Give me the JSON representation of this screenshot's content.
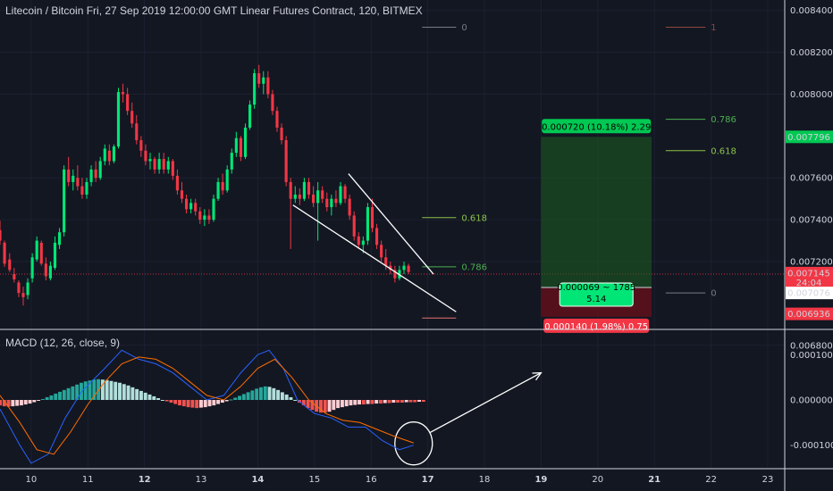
{
  "chart_data": {
    "type": "candlestick",
    "title": "Litecoin / Bitcoin Fri, 27 Sep 2019 12:00:00 GMT Linear Futures Contract, 120, BITMEX",
    "price_axis": {
      "ylim": [
        0.00688,
        0.00845
      ],
      "ticks": [
        "0.008400",
        "0.008200",
        "0.008000",
        "0.007600",
        "0.007400",
        "0.007200",
        "0.006800"
      ]
    },
    "x_axis": {
      "xlim": [
        9.45,
        23.3
      ],
      "ticks": [
        "10",
        "11",
        "12",
        "13",
        "14",
        "15",
        "16",
        "17",
        "18",
        "19",
        "20",
        "21",
        "22",
        "23"
      ],
      "bold_ticks": [
        "12",
        "14",
        "17",
        "19",
        "21"
      ]
    },
    "candles": [
      {
        "t": 9.45,
        "o": 0.00735,
        "h": 0.007395,
        "l": 0.00728,
        "c": 0.0073
      },
      {
        "t": 9.53,
        "o": 0.00729,
        "h": 0.0073,
        "l": 0.007175,
        "c": 0.00719
      },
      {
        "t": 9.62,
        "o": 0.00721,
        "h": 0.00724,
        "l": 0.00715,
        "c": 0.00716
      },
      {
        "t": 9.7,
        "o": 0.00714,
        "h": 0.00717,
        "l": 0.0071,
        "c": 0.007115
      },
      {
        "t": 9.78,
        "o": 0.0071,
        "h": 0.00711,
        "l": 0.00703,
        "c": 0.00705
      },
      {
        "t": 9.86,
        "o": 0.00705,
        "h": 0.00708,
        "l": 0.00699,
        "c": 0.00703
      },
      {
        "t": 9.94,
        "o": 0.00704,
        "h": 0.00712,
        "l": 0.00702,
        "c": 0.0071
      },
      {
        "t": 10.02,
        "o": 0.00712,
        "h": 0.00724,
        "l": 0.0071,
        "c": 0.00722
      },
      {
        "t": 10.1,
        "o": 0.00721,
        "h": 0.00732,
        "l": 0.0072,
        "c": 0.0073
      },
      {
        "t": 10.18,
        "o": 0.00729,
        "h": 0.0073,
        "l": 0.00718,
        "c": 0.00719
      },
      {
        "t": 10.26,
        "o": 0.00719,
        "h": 0.00722,
        "l": 0.00711,
        "c": 0.00713
      },
      {
        "t": 10.34,
        "o": 0.00712,
        "h": 0.0072,
        "l": 0.00711,
        "c": 0.00718
      },
      {
        "t": 10.42,
        "o": 0.00717,
        "h": 0.00732,
        "l": 0.00716,
        "c": 0.00729
      },
      {
        "t": 10.5,
        "o": 0.00728,
        "h": 0.00736,
        "l": 0.00726,
        "c": 0.00734
      },
      {
        "t": 10.58,
        "o": 0.00734,
        "h": 0.00766,
        "l": 0.00732,
        "c": 0.00764
      },
      {
        "t": 10.66,
        "o": 0.00764,
        "h": 0.0077,
        "l": 0.00756,
        "c": 0.00758
      },
      {
        "t": 10.74,
        "o": 0.00758,
        "h": 0.00764,
        "l": 0.00754,
        "c": 0.00761
      },
      {
        "t": 10.82,
        "o": 0.0076,
        "h": 0.00766,
        "l": 0.00754,
        "c": 0.00756
      },
      {
        "t": 10.9,
        "o": 0.00756,
        "h": 0.0076,
        "l": 0.0075,
        "c": 0.00752
      },
      {
        "t": 10.98,
        "o": 0.00752,
        "h": 0.0076,
        "l": 0.0075,
        "c": 0.00758
      },
      {
        "t": 11.06,
        "o": 0.00758,
        "h": 0.00766,
        "l": 0.00756,
        "c": 0.00764
      },
      {
        "t": 11.14,
        "o": 0.00764,
        "h": 0.00768,
        "l": 0.00758,
        "c": 0.0076
      },
      {
        "t": 11.22,
        "o": 0.0076,
        "h": 0.0077,
        "l": 0.00759,
        "c": 0.00768
      },
      {
        "t": 11.3,
        "o": 0.00768,
        "h": 0.00776,
        "l": 0.00766,
        "c": 0.00774
      },
      {
        "t": 11.38,
        "o": 0.00773,
        "h": 0.00776,
        "l": 0.00766,
        "c": 0.00768
      },
      {
        "t": 11.46,
        "o": 0.00768,
        "h": 0.00776,
        "l": 0.00767,
        "c": 0.00775
      },
      {
        "t": 11.54,
        "o": 0.00775,
        "h": 0.00803,
        "l": 0.00774,
        "c": 0.00801
      },
      {
        "t": 11.62,
        "o": 0.00801,
        "h": 0.00805,
        "l": 0.00796,
        "c": 0.008
      },
      {
        "t": 11.7,
        "o": 0.008,
        "h": 0.00803,
        "l": 0.0079,
        "c": 0.00792
      },
      {
        "t": 11.78,
        "o": 0.00792,
        "h": 0.00796,
        "l": 0.00784,
        "c": 0.00786
      },
      {
        "t": 11.86,
        "o": 0.00786,
        "h": 0.0079,
        "l": 0.00776,
        "c": 0.00778
      },
      {
        "t": 11.94,
        "o": 0.00778,
        "h": 0.0078,
        "l": 0.0077,
        "c": 0.00773
      },
      {
        "t": 12.02,
        "o": 0.00773,
        "h": 0.00776,
        "l": 0.00766,
        "c": 0.00768
      },
      {
        "t": 12.1,
        "o": 0.00768,
        "h": 0.00772,
        "l": 0.00764,
        "c": 0.00769
      },
      {
        "t": 12.18,
        "o": 0.00769,
        "h": 0.0077,
        "l": 0.00762,
        "c": 0.00764
      },
      {
        "t": 12.26,
        "o": 0.00764,
        "h": 0.00772,
        "l": 0.00762,
        "c": 0.00769
      },
      {
        "t": 12.34,
        "o": 0.00769,
        "h": 0.00772,
        "l": 0.00762,
        "c": 0.00764
      },
      {
        "t": 12.42,
        "o": 0.00764,
        "h": 0.0077,
        "l": 0.00762,
        "c": 0.00768
      },
      {
        "t": 12.5,
        "o": 0.00768,
        "h": 0.00769,
        "l": 0.00759,
        "c": 0.00761
      },
      {
        "t": 12.58,
        "o": 0.00761,
        "h": 0.00764,
        "l": 0.00752,
        "c": 0.00754
      },
      {
        "t": 12.66,
        "o": 0.00754,
        "h": 0.00758,
        "l": 0.00748,
        "c": 0.0075
      },
      {
        "t": 12.74,
        "o": 0.0075,
        "h": 0.00752,
        "l": 0.00743,
        "c": 0.00745
      },
      {
        "t": 12.82,
        "o": 0.00745,
        "h": 0.0075,
        "l": 0.00743,
        "c": 0.00748
      },
      {
        "t": 12.9,
        "o": 0.00748,
        "h": 0.0075,
        "l": 0.00742,
        "c": 0.00744
      },
      {
        "t": 12.98,
        "o": 0.00744,
        "h": 0.00746,
        "l": 0.00738,
        "c": 0.0074
      },
      {
        "t": 13.06,
        "o": 0.0074,
        "h": 0.00745,
        "l": 0.00737,
        "c": 0.00742
      },
      {
        "t": 13.14,
        "o": 0.00742,
        "h": 0.00745,
        "l": 0.00738,
        "c": 0.0074
      },
      {
        "t": 13.22,
        "o": 0.0074,
        "h": 0.00752,
        "l": 0.00739,
        "c": 0.0075
      },
      {
        "t": 13.3,
        "o": 0.0075,
        "h": 0.0076,
        "l": 0.00749,
        "c": 0.00758
      },
      {
        "t": 13.38,
        "o": 0.00758,
        "h": 0.00762,
        "l": 0.00752,
        "c": 0.00754
      },
      {
        "t": 13.46,
        "o": 0.00754,
        "h": 0.00766,
        "l": 0.00753,
        "c": 0.00764
      },
      {
        "t": 13.54,
        "o": 0.00764,
        "h": 0.00774,
        "l": 0.00762,
        "c": 0.00772
      },
      {
        "t": 13.62,
        "o": 0.00772,
        "h": 0.00782,
        "l": 0.0077,
        "c": 0.00779
      },
      {
        "t": 13.7,
        "o": 0.00779,
        "h": 0.0078,
        "l": 0.00768,
        "c": 0.0077
      },
      {
        "t": 13.78,
        "o": 0.0077,
        "h": 0.00786,
        "l": 0.00769,
        "c": 0.00784
      },
      {
        "t": 13.86,
        "o": 0.00784,
        "h": 0.00797,
        "l": 0.00783,
        "c": 0.00795
      },
      {
        "t": 13.94,
        "o": 0.00795,
        "h": 0.00812,
        "l": 0.00793,
        "c": 0.0081
      },
      {
        "t": 14.02,
        "o": 0.0081,
        "h": 0.00814,
        "l": 0.00803,
        "c": 0.00805
      },
      {
        "t": 14.1,
        "o": 0.00805,
        "h": 0.00811,
        "l": 0.008,
        "c": 0.00808
      },
      {
        "t": 14.18,
        "o": 0.00808,
        "h": 0.00811,
        "l": 0.00798,
        "c": 0.008
      },
      {
        "t": 14.26,
        "o": 0.008,
        "h": 0.00802,
        "l": 0.0079,
        "c": 0.00792
      },
      {
        "t": 14.34,
        "o": 0.00792,
        "h": 0.00794,
        "l": 0.00782,
        "c": 0.00784
      },
      {
        "t": 14.42,
        "o": 0.00784,
        "h": 0.00786,
        "l": 0.00776,
        "c": 0.00778
      },
      {
        "t": 14.5,
        "o": 0.00778,
        "h": 0.0078,
        "l": 0.00756,
        "c": 0.00758
      },
      {
        "t": 14.58,
        "o": 0.00758,
        "h": 0.0076,
        "l": 0.00726,
        "c": 0.0075
      },
      {
        "t": 14.66,
        "o": 0.0075,
        "h": 0.00756,
        "l": 0.00748,
        "c": 0.00752
      },
      {
        "t": 14.74,
        "o": 0.00752,
        "h": 0.00755,
        "l": 0.00747,
        "c": 0.0075
      },
      {
        "t": 14.82,
        "o": 0.0075,
        "h": 0.0076,
        "l": 0.00749,
        "c": 0.00758
      },
      {
        "t": 14.9,
        "o": 0.00758,
        "h": 0.0076,
        "l": 0.0075,
        "c": 0.00752
      },
      {
        "t": 14.98,
        "o": 0.00752,
        "h": 0.00756,
        "l": 0.00746,
        "c": 0.00748
      },
      {
        "t": 15.06,
        "o": 0.00748,
        "h": 0.00758,
        "l": 0.0073,
        "c": 0.00754
      },
      {
        "t": 15.14,
        "o": 0.00754,
        "h": 0.00756,
        "l": 0.00748,
        "c": 0.0075
      },
      {
        "t": 15.22,
        "o": 0.0075,
        "h": 0.00753,
        "l": 0.00744,
        "c": 0.00746
      },
      {
        "t": 15.3,
        "o": 0.00746,
        "h": 0.00752,
        "l": 0.00742,
        "c": 0.0075
      },
      {
        "t": 15.38,
        "o": 0.0075,
        "h": 0.00754,
        "l": 0.00746,
        "c": 0.00748
      },
      {
        "t": 15.46,
        "o": 0.00748,
        "h": 0.00758,
        "l": 0.00747,
        "c": 0.00756
      },
      {
        "t": 15.54,
        "o": 0.00756,
        "h": 0.00757,
        "l": 0.00748,
        "c": 0.0075
      },
      {
        "t": 15.62,
        "o": 0.0075,
        "h": 0.00752,
        "l": 0.0074,
        "c": 0.00742
      },
      {
        "t": 15.7,
        "o": 0.00742,
        "h": 0.00744,
        "l": 0.0073,
        "c": 0.00732
      },
      {
        "t": 15.78,
        "o": 0.00732,
        "h": 0.00734,
        "l": 0.00726,
        "c": 0.00728
      },
      {
        "t": 15.86,
        "o": 0.00728,
        "h": 0.00732,
        "l": 0.00724,
        "c": 0.0073
      },
      {
        "t": 15.94,
        "o": 0.0073,
        "h": 0.00748,
        "l": 0.00728,
        "c": 0.00746
      },
      {
        "t": 16.02,
        "o": 0.00746,
        "h": 0.0075,
        "l": 0.00734,
        "c": 0.00736
      },
      {
        "t": 16.1,
        "o": 0.00736,
        "h": 0.00738,
        "l": 0.00726,
        "c": 0.00728
      },
      {
        "t": 16.18,
        "o": 0.00728,
        "h": 0.0073,
        "l": 0.0072,
        "c": 0.00722
      },
      {
        "t": 16.26,
        "o": 0.00722,
        "h": 0.00726,
        "l": 0.00716,
        "c": 0.00718
      },
      {
        "t": 16.34,
        "o": 0.00718,
        "h": 0.0072,
        "l": 0.00714,
        "c": 0.00716
      },
      {
        "t": 16.42,
        "o": 0.00716,
        "h": 0.00718,
        "l": 0.0071,
        "c": 0.00712
      },
      {
        "t": 16.5,
        "o": 0.00712,
        "h": 0.00718,
        "l": 0.00711,
        "c": 0.00716
      },
      {
        "t": 16.58,
        "o": 0.00716,
        "h": 0.0072,
        "l": 0.00714,
        "c": 0.00718
      },
      {
        "t": 16.66,
        "o": 0.00718,
        "h": 0.00719,
        "l": 0.00714,
        "c": 0.00715
      }
    ],
    "price_line": 0.00714,
    "wedge": [
      {
        "from": [
          14.62,
          0.00747
        ],
        "to": [
          17.5,
          0.00696
        ]
      },
      {
        "from": [
          15.6,
          0.00762
        ],
        "to": [
          17.1,
          0.00714
        ]
      }
    ],
    "fib_left": {
      "x": [
        16.9,
        17.5
      ],
      "levels": [
        {
          "label": "0",
          "price": 0.00832,
          "color": "#787b86"
        },
        {
          "label": "0.618",
          "price": 0.00741,
          "color": "#8bc34a"
        },
        {
          "label": "0.786",
          "price": 0.007175,
          "color": "#4caf50"
        },
        {
          "label": "",
          "price": 0.00693,
          "color": "#e57373"
        }
      ]
    },
    "fib_right": {
      "x": [
        21.2,
        21.9
      ],
      "levels": [
        {
          "label": "1",
          "price": 0.00832,
          "color": "#8d4a3c"
        },
        {
          "label": "0.786",
          "price": 0.00788,
          "color": "#4caf50"
        },
        {
          "label": "0.618",
          "price": 0.00773,
          "color": "#8bc34a"
        },
        {
          "label": "0",
          "price": 0.00705,
          "color": "#787b86"
        }
      ]
    },
    "position": {
      "x": [
        19.0,
        20.95
      ],
      "entry": 0.007076,
      "target": 0.007796,
      "stop": 0.006936,
      "target_label": "0.000720 (10.18%) 2.29",
      "entry_label_1": "0.000069 ~ 1785",
      "entry_label_2": "5.14",
      "stop_label": "0.000140 (1.98%) 0.75"
    },
    "axis_badges": [
      {
        "text": "0.007796",
        "price": 0.007796,
        "bg": "#00c853",
        "fg": "#000000"
      },
      {
        "text": "0.007145",
        "price": 0.007145,
        "bg": "#f23645",
        "fg": "#ffffff"
      },
      {
        "text": "24:04",
        "price": 0.0071,
        "bg": "#f23645",
        "fg": "#ffffff"
      },
      {
        "text": "0.007076",
        "price": 0.00705,
        "bg": "#ffffff",
        "fg": "#131722"
      },
      {
        "text": "0.006936",
        "price": 0.00695,
        "bg": "#f23645",
        "fg": "#ffffff"
      }
    ],
    "macd": {
      "label": "MACD (12, 26, close, 9)",
      "ylim": [
        -0.00015,
        0.00015
      ],
      "ticks": [
        {
          "text": "0.000100",
          "value": 0.0001
        },
        {
          "text": "0.000000",
          "value": 0.0
        },
        {
          "text": "-0.000100",
          "value": -0.0001
        }
      ],
      "hist": [
        -12,
        -14,
        -15,
        -14,
        -13,
        -12,
        -10,
        -8,
        -5,
        -2,
        2,
        6,
        10,
        14,
        18,
        22,
        26,
        30,
        34,
        38,
        41,
        43,
        45,
        46,
        45,
        44,
        42,
        40,
        38,
        35,
        32,
        28,
        24,
        20,
        16,
        12,
        8,
        4,
        0,
        -3,
        -6,
        -9,
        -12,
        -14,
        -16,
        -17,
        -18,
        -17,
        -16,
        -14,
        -12,
        -9,
        -6,
        -3,
        1,
        5,
        9,
        13,
        17,
        21,
        25,
        28,
        30,
        29,
        26,
        22,
        17,
        12,
        6,
        0,
        -6,
        -12,
        -18,
        -22,
        -26,
        -28,
        -28,
        -26,
        -22,
        -18,
        -16,
        -14,
        -12,
        -11,
        -10,
        -10,
        -9,
        -9,
        -8,
        -8,
        -7,
        -7,
        -6,
        -6,
        -6,
        -5,
        -5,
        -5,
        -4,
        -4
      ],
      "hist_x0": 9.45,
      "hist_dx": 0.0755,
      "macd_line": [
        [
          9.45,
          -2e-05
        ],
        [
          9.8,
          -0.0001
        ],
        [
          10.0,
          -0.00014
        ],
        [
          10.3,
          -0.00012
        ],
        [
          10.6,
          -4e-05
        ],
        [
          10.9,
          2e-05
        ],
        [
          11.3,
          7e-05
        ],
        [
          11.6,
          0.00011
        ],
        [
          11.9,
          9e-05
        ],
        [
          12.2,
          8e-05
        ],
        [
          12.5,
          6e-05
        ],
        [
          12.8,
          3e-05
        ],
        [
          13.1,
          0.0
        ],
        [
          13.4,
          1e-05
        ],
        [
          13.7,
          6e-05
        ],
        [
          14.0,
          0.0001
        ],
        [
          14.2,
          0.00011
        ],
        [
          14.45,
          7e-05
        ],
        [
          14.7,
          0.0
        ],
        [
          15.0,
          -3e-05
        ],
        [
          15.3,
          -4e-05
        ],
        [
          15.6,
          -6e-05
        ],
        [
          15.9,
          -6e-05
        ],
        [
          16.2,
          -9e-05
        ],
        [
          16.5,
          -0.00011
        ],
        [
          16.75,
          -0.0001
        ]
      ],
      "signal_line": [
        [
          9.45,
          1e-05
        ],
        [
          9.8,
          -5e-05
        ],
        [
          10.1,
          -0.00011
        ],
        [
          10.4,
          -0.00012
        ],
        [
          10.7,
          -7e-05
        ],
        [
          11.0,
          -1e-05
        ],
        [
          11.3,
          4e-05
        ],
        [
          11.6,
          8e-05
        ],
        [
          11.9,
          9.5e-05
        ],
        [
          12.2,
          9e-05
        ],
        [
          12.5,
          7e-05
        ],
        [
          12.8,
          4e-05
        ],
        [
          13.1,
          1e-05
        ],
        [
          13.4,
          0.0
        ],
        [
          13.7,
          3e-05
        ],
        [
          14.0,
          7e-05
        ],
        [
          14.3,
          9e-05
        ],
        [
          14.6,
          5e-05
        ],
        [
          14.9,
          0.0
        ],
        [
          15.2,
          -3e-05
        ],
        [
          15.5,
          -4.5e-05
        ],
        [
          15.8,
          -5e-05
        ],
        [
          16.1,
          -6.5e-05
        ],
        [
          16.4,
          -8e-05
        ],
        [
          16.75,
          -9.5e-05
        ]
      ]
    }
  }
}
